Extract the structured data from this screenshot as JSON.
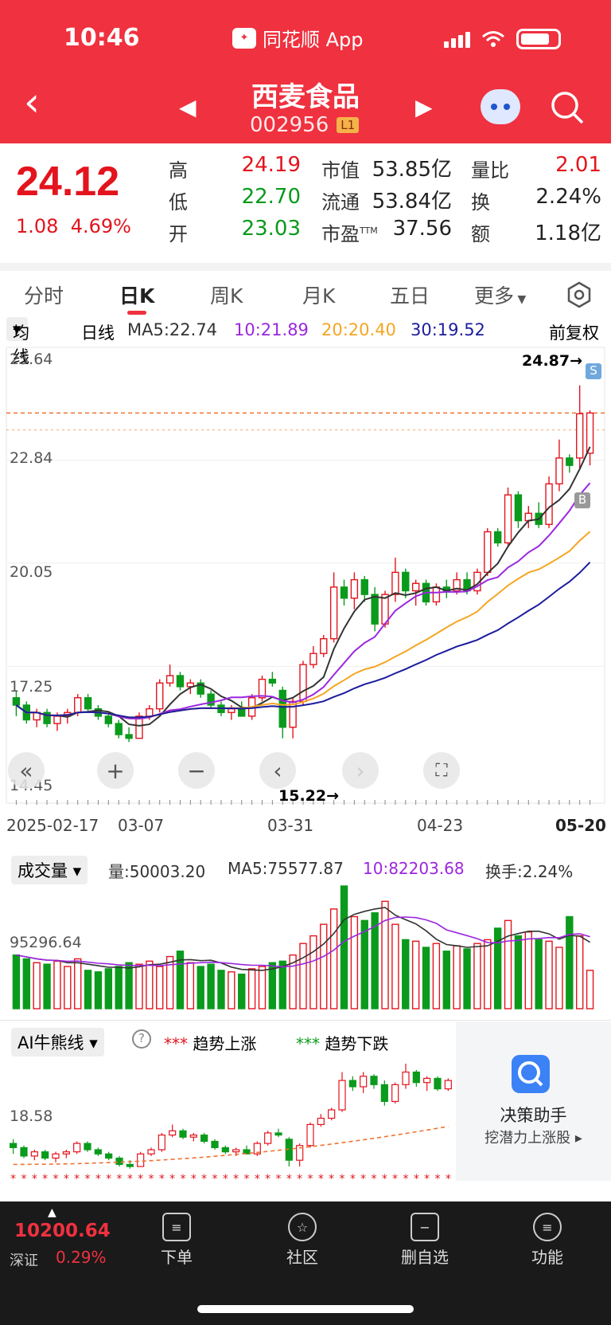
{
  "status": {
    "time": "10:46",
    "app": "同花顺 App"
  },
  "stock": {
    "name": "西麦食品",
    "code": "002956",
    "level": "L1"
  },
  "quote": {
    "price": "24.12",
    "change": "1.08",
    "change_pct": "4.69%",
    "high_label": "高",
    "high": "24.19",
    "low_label": "低",
    "low": "22.70",
    "open_label": "开",
    "open": "23.03",
    "mcap_label": "市值",
    "mcap": "53.85亿",
    "float_label": "流通",
    "float": "53.84亿",
    "pe_label": "市盈",
    "pe_sup": "TTM",
    "pe": "37.56",
    "vr_label": "量比",
    "vr": "2.01",
    "turn_label": "换",
    "turn": "2.24%",
    "amt_label": "额",
    "amt": "1.18亿"
  },
  "tabs": [
    "分时",
    "日K",
    "周K",
    "月K",
    "五日",
    "更多"
  ],
  "ma": {
    "selector": "均线",
    "period": "日线",
    "ma5": "MA5:22.74",
    "ma10": "10:21.89",
    "ma20": "20:20.40",
    "ma30": "30:19.52",
    "adjust": "前复权"
  },
  "price_axis": {
    "top": "25.64",
    "l2": "22.84",
    "l3": "20.05",
    "l4": "17.25",
    "bottom": "14.45",
    "max_mark": "24.87→",
    "min_mark": "15.22→",
    "sell_tag": "S",
    "buy_tag": "B"
  },
  "date_axis": [
    "2025-02-17",
    "03-07",
    "03-31",
    "04-23",
    "05-20"
  ],
  "volume": {
    "selector": "成交量",
    "vol": "量:50003.20",
    "ma5": "MA5:75577.87",
    "ma10": "10:82203.68",
    "turnover": "换手:2.24%",
    "axis": "95296.64"
  },
  "ai": {
    "selector": "AI牛熊线",
    "up_mark": "***",
    "up": "趋势上涨",
    "down_mark": "***",
    "down": "趋势下跌",
    "axis": "18.58",
    "panel_title": "决策助手",
    "panel_sub": "挖潜力上涨股"
  },
  "bottom": {
    "index_value": "10200.64",
    "index_name": "深证",
    "index_pct": "0.29%",
    "nav": [
      "下单",
      "社区",
      "删自选",
      "功能"
    ]
  },
  "colors": {
    "up": "#e3141d",
    "down": "#0a9a1c",
    "ma5": "#333333",
    "ma10": "#9b27e0",
    "ma20": "#f5a623",
    "ma30": "#1c1c9e"
  },
  "chart_data": {
    "type": "candlestick",
    "title": "",
    "y_range": [
      14.45,
      25.64
    ],
    "x_range": [
      "2025-02-17",
      "2025-05-20"
    ],
    "candles": [
      [
        16.4,
        16.6,
        15.9,
        16.2
      ],
      [
        16.2,
        16.3,
        15.7,
        15.8
      ],
      [
        15.8,
        16.1,
        15.6,
        16.0
      ],
      [
        16.0,
        16.1,
        15.6,
        15.7
      ],
      [
        15.7,
        16.0,
        15.5,
        15.9
      ],
      [
        15.9,
        16.1,
        15.7,
        16.0
      ],
      [
        16.0,
        16.5,
        15.9,
        16.4
      ],
      [
        16.4,
        16.5,
        16.0,
        16.1
      ],
      [
        16.1,
        16.2,
        15.8,
        15.9
      ],
      [
        15.9,
        16.0,
        15.6,
        15.7
      ],
      [
        15.7,
        15.8,
        15.3,
        15.4
      ],
      [
        15.4,
        15.6,
        15.2,
        15.3
      ],
      [
        15.3,
        16.0,
        15.3,
        15.9
      ],
      [
        15.9,
        16.2,
        15.8,
        16.1
      ],
      [
        16.1,
        16.9,
        16.0,
        16.8
      ],
      [
        16.8,
        17.3,
        16.7,
        17.0
      ],
      [
        17.0,
        17.1,
        16.6,
        16.7
      ],
      [
        16.7,
        16.9,
        16.5,
        16.8
      ],
      [
        16.8,
        16.9,
        16.4,
        16.5
      ],
      [
        16.5,
        16.6,
        16.1,
        16.2
      ],
      [
        16.2,
        16.3,
        15.9,
        16.0
      ],
      [
        16.0,
        16.2,
        15.8,
        16.1
      ],
      [
        16.1,
        16.3,
        15.9,
        15.9
      ],
      [
        15.9,
        16.5,
        15.8,
        16.4
      ],
      [
        16.4,
        17.0,
        16.3,
        16.9
      ],
      [
        16.9,
        17.1,
        16.7,
        16.8
      ],
      [
        16.6,
        16.7,
        15.3,
        15.6
      ],
      [
        15.6,
        16.4,
        15.3,
        16.3
      ],
      [
        16.3,
        17.4,
        16.2,
        17.3
      ],
      [
        17.3,
        17.8,
        17.2,
        17.6
      ],
      [
        17.6,
        18.1,
        17.5,
        18.0
      ],
      [
        18.0,
        19.8,
        17.9,
        19.4
      ],
      [
        19.4,
        19.6,
        18.9,
        19.1
      ],
      [
        19.1,
        19.8,
        18.8,
        19.6
      ],
      [
        19.6,
        19.7,
        19.0,
        19.2
      ],
      [
        19.2,
        19.4,
        18.2,
        18.4
      ],
      [
        18.4,
        19.3,
        18.3,
        19.2
      ],
      [
        19.2,
        20.2,
        19.0,
        19.8
      ],
      [
        19.8,
        19.9,
        19.1,
        19.3
      ],
      [
        19.3,
        19.6,
        18.9,
        19.5
      ],
      [
        19.5,
        19.6,
        18.9,
        19.0
      ],
      [
        19.0,
        19.5,
        18.9,
        19.4
      ],
      [
        19.4,
        19.6,
        19.1,
        19.3
      ],
      [
        19.3,
        19.8,
        19.2,
        19.6
      ],
      [
        19.6,
        19.8,
        19.2,
        19.3
      ],
      [
        19.3,
        19.9,
        19.2,
        19.8
      ],
      [
        19.8,
        21.0,
        19.7,
        20.9
      ],
      [
        20.9,
        21.0,
        20.5,
        20.6
      ],
      [
        20.6,
        22.1,
        20.5,
        21.9
      ],
      [
        21.9,
        22.0,
        21.0,
        21.2
      ],
      [
        21.2,
        21.6,
        21.0,
        21.4
      ],
      [
        21.4,
        21.7,
        21.0,
        21.1
      ],
      [
        21.1,
        22.4,
        21.0,
        22.2
      ],
      [
        22.2,
        23.4,
        22.0,
        22.9
      ],
      [
        22.9,
        23.0,
        22.5,
        22.7
      ],
      [
        22.9,
        24.87,
        22.6,
        24.1
      ],
      [
        23.03,
        24.19,
        22.7,
        24.12
      ]
    ],
    "ma_lines": {
      "MA5": 22.74,
      "MA10": 21.89,
      "MA20": 20.4,
      "MA30": 19.52
    },
    "volume": [
      70,
      65,
      60,
      58,
      62,
      55,
      65,
      50,
      48,
      52,
      55,
      60,
      58,
      62,
      55,
      68,
      75,
      60,
      55,
      58,
      50,
      48,
      45,
      52,
      55,
      60,
      62,
      70,
      85,
      95,
      110,
      130,
      160,
      120,
      115,
      125,
      140,
      110,
      90,
      88,
      80,
      85,
      75,
      82,
      78,
      85,
      90,
      105,
      115,
      95,
      100,
      90,
      88,
      80,
      120,
      95,
      50
    ]
  }
}
